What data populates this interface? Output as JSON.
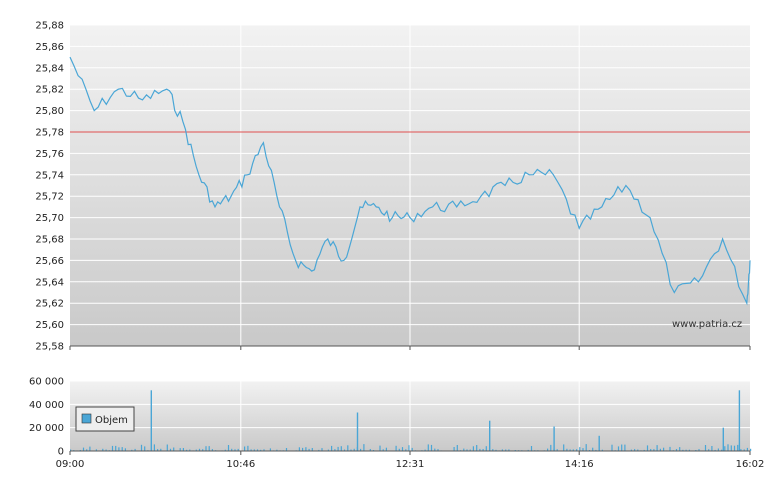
{
  "chart_data": [
    {
      "type": "line",
      "ylim": [
        25.58,
        25.88
      ],
      "y_ticks": [
        "25,88",
        "25,86",
        "25,84",
        "25,82",
        "25,80",
        "25,78",
        "25,76",
        "25,74",
        "25,72",
        "25,70",
        "25,68",
        "25,66",
        "25,64",
        "25,62",
        "25,60",
        "25,58"
      ],
      "reference_line": {
        "value": 25.78,
        "color": "#e05050"
      },
      "line_color": "#4aa6d6",
      "grid": true,
      "watermark": "www.patria.cz",
      "x": [
        "09:00",
        "09:15",
        "09:30",
        "09:45",
        "10:00",
        "10:10",
        "10:20",
        "10:30",
        "10:40",
        "10:50",
        "11:00",
        "11:10",
        "11:20",
        "11:30",
        "11:40",
        "11:50",
        "12:00",
        "12:10",
        "12:20",
        "12:31",
        "12:45",
        "13:00",
        "13:15",
        "13:30",
        "13:45",
        "14:00",
        "14:16",
        "14:30",
        "14:45",
        "15:00",
        "15:15",
        "15:30",
        "15:45",
        "16:00",
        "16:02"
      ],
      "values": [
        25.85,
        25.8,
        25.82,
        25.81,
        25.82,
        25.79,
        25.74,
        25.71,
        25.72,
        25.74,
        25.77,
        25.71,
        25.66,
        25.65,
        25.68,
        25.66,
        25.71,
        25.71,
        25.7,
        25.7,
        25.71,
        25.71,
        25.72,
        25.73,
        25.74,
        25.74,
        25.69,
        25.71,
        25.73,
        25.7,
        25.63,
        25.64,
        25.68,
        25.62,
        25.66
      ]
    },
    {
      "type": "bar",
      "ylim": [
        0,
        60000
      ],
      "y_ticks": [
        "60 000",
        "40 000",
        "20 000",
        "0"
      ],
      "x_ticks": [
        "09:00",
        "10:46",
        "12:31",
        "14:16",
        "16:02"
      ],
      "legend": "Objem",
      "bar_color": "#4aa6d6",
      "spikes": [
        {
          "x": "09:50",
          "value": 52000
        },
        {
          "x": "11:58",
          "value": 33000
        },
        {
          "x": "13:20",
          "value": 26000
        },
        {
          "x": "14:00",
          "value": 21000
        },
        {
          "x": "14:28",
          "value": 13000
        },
        {
          "x": "15:55",
          "value": 52000
        },
        {
          "x": "15:45",
          "value": 20000
        }
      ]
    }
  ]
}
